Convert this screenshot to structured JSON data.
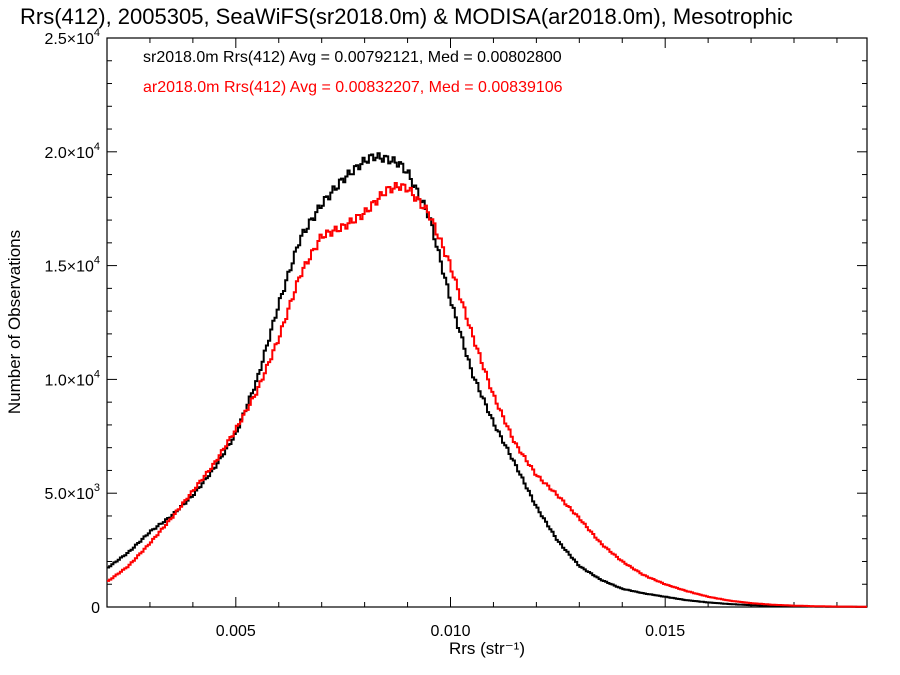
{
  "chart_data": {
    "type": "line",
    "title": "Rrs(412), 2005305, SeaWiFS(sr2018.0m) & MODISA(ar2018.0m), Mesotrophic",
    "xlabel": "Rrs (str⁻¹)",
    "ylabel": "Number of Observations",
    "xlim": [
      0.002,
      0.0197
    ],
    "ylim": [
      0,
      25000
    ],
    "x_ticks": [
      0.005,
      0.01,
      0.015
    ],
    "x_tick_labels": [
      "0.005",
      "0.010",
      "0.015"
    ],
    "y_ticks": [
      0,
      5000,
      10000,
      15000,
      20000,
      25000
    ],
    "y_tick_labels": [
      {
        "base": "0",
        "exp": ""
      },
      {
        "base": "5.0×10",
        "exp": "3"
      },
      {
        "base": "1.0×10",
        "exp": "4"
      },
      {
        "base": "1.5×10",
        "exp": "4"
      },
      {
        "base": "2.0×10",
        "exp": "4"
      },
      {
        "base": "2.5×10",
        "exp": "4"
      }
    ],
    "grid": false,
    "legend_position": "top-left",
    "series": [
      {
        "name": "sr2018.0m Rrs(412) Avg = 0.00792121, Med = 0.00802800",
        "color": "#000000",
        "x": [
          0.002,
          0.0025,
          0.003,
          0.0035,
          0.004,
          0.0045,
          0.005,
          0.0055,
          0.006,
          0.0065,
          0.007,
          0.0075,
          0.008,
          0.0082,
          0.0085,
          0.0088,
          0.009,
          0.0095,
          0.01,
          0.0105,
          0.011,
          0.0115,
          0.012,
          0.0125,
          0.013,
          0.0135,
          0.014,
          0.0145,
          0.015,
          0.0155,
          0.016,
          0.0165,
          0.017,
          0.0175,
          0.018,
          0.0185,
          0.019,
          0.0197
        ],
        "values": [
          1700,
          2400,
          3300,
          4000,
          4900,
          6100,
          7600,
          10000,
          13300,
          16200,
          17700,
          18800,
          19600,
          19800,
          19700,
          19500,
          19100,
          17200,
          13500,
          10300,
          8100,
          6300,
          4400,
          2900,
          1800,
          1200,
          800,
          600,
          450,
          300,
          200,
          130,
          80,
          50,
          30,
          20,
          10,
          5
        ]
      },
      {
        "name": "ar2018.0m Rrs(412) Avg = 0.00832207, Med = 0.00839106",
        "color": "#ff0000",
        "x": [
          0.002,
          0.0025,
          0.003,
          0.0035,
          0.004,
          0.0045,
          0.005,
          0.0055,
          0.006,
          0.0065,
          0.007,
          0.0075,
          0.008,
          0.0085,
          0.0088,
          0.009,
          0.0095,
          0.01,
          0.0105,
          0.011,
          0.0115,
          0.012,
          0.0125,
          0.013,
          0.0135,
          0.014,
          0.0145,
          0.015,
          0.0155,
          0.016,
          0.0165,
          0.017,
          0.0175,
          0.018,
          0.0185,
          0.019,
          0.0197
        ],
        "values": [
          1100,
          1800,
          2800,
          3900,
          5100,
          6300,
          7800,
          9500,
          11800,
          14600,
          16300,
          16700,
          17300,
          18300,
          18500,
          18400,
          17300,
          15000,
          12000,
          9300,
          7200,
          5800,
          4900,
          3900,
          2800,
          2000,
          1400,
          1000,
          700,
          450,
          280,
          170,
          100,
          60,
          35,
          20,
          10
        ]
      }
    ]
  }
}
